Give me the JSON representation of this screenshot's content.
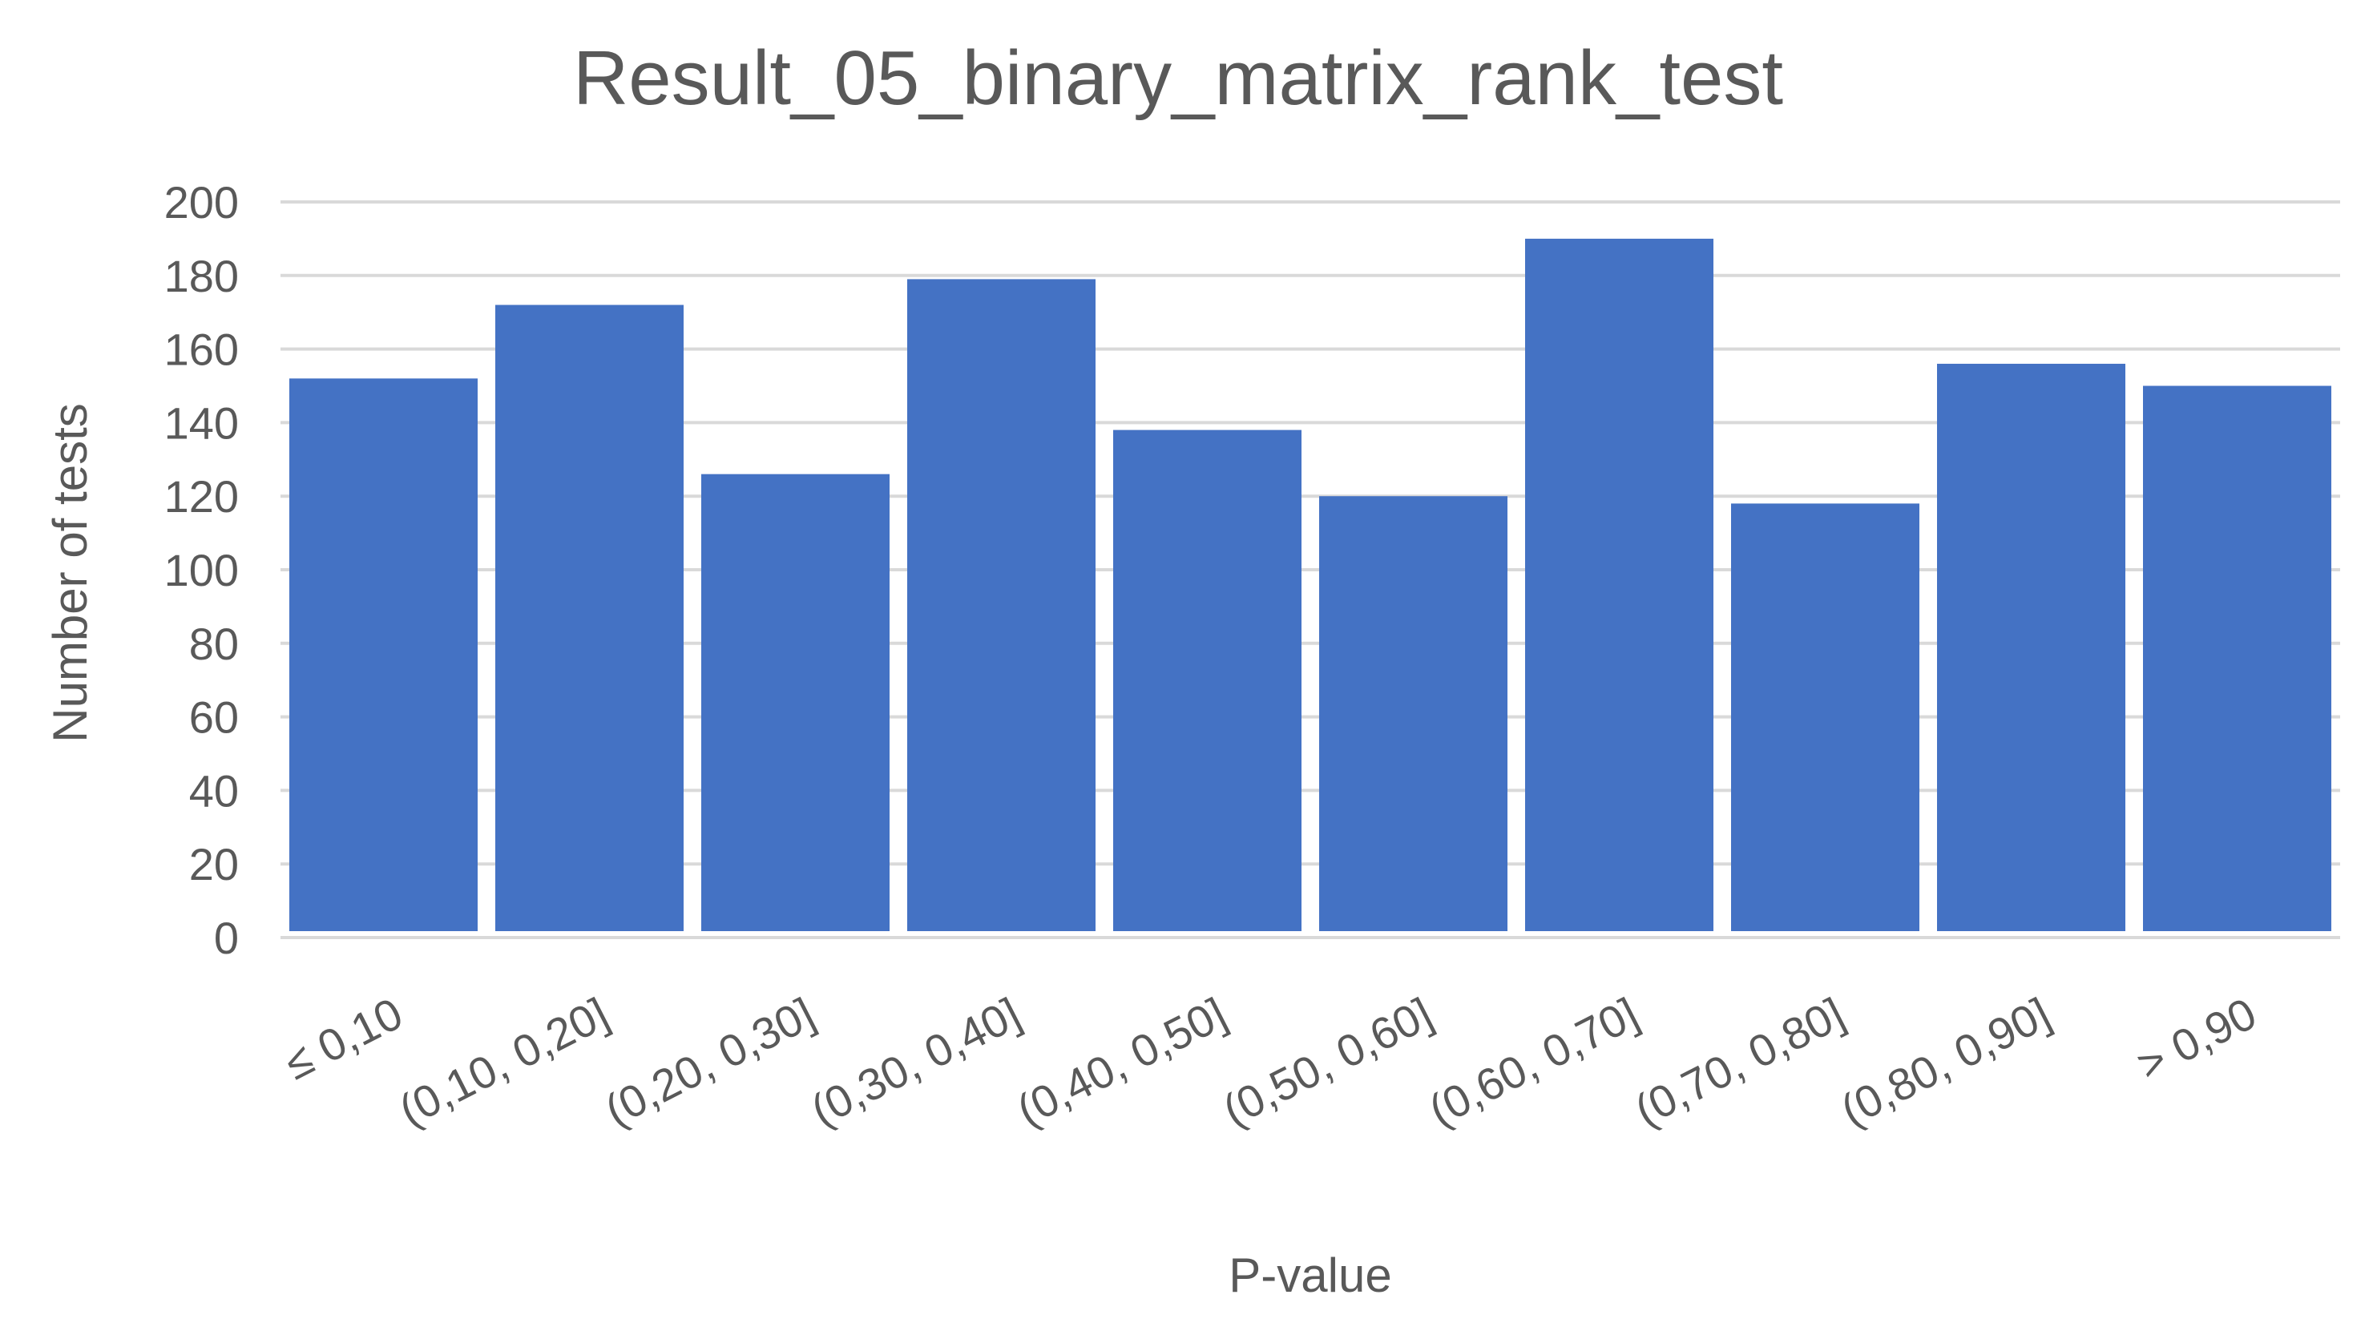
{
  "chart_data": {
    "type": "bar",
    "title": "Result_05_binary_matrix_rank_test",
    "xlabel": "P-value",
    "ylabel": "Number of tests",
    "categories": [
      "≤ 0,10",
      "(0,10, 0,20]",
      "(0,20, 0,30]",
      "(0,30, 0,40]",
      "(0,40, 0,50]",
      "(0,50, 0,60]",
      "(0,60, 0,70]",
      "(0,70, 0,80]",
      "(0,80, 0,90]",
      "> 0,90"
    ],
    "values": [
      152,
      172,
      126,
      179,
      138,
      120,
      190,
      118,
      156,
      150
    ],
    "ylim": [
      0,
      200
    ],
    "yticks": [
      0,
      20,
      40,
      60,
      80,
      100,
      120,
      140,
      160,
      180,
      200
    ],
    "grid": true,
    "legend": "none",
    "bar_color": "#4472c4",
    "grid_color": "#d9d9d9",
    "text_color": "#595959"
  }
}
